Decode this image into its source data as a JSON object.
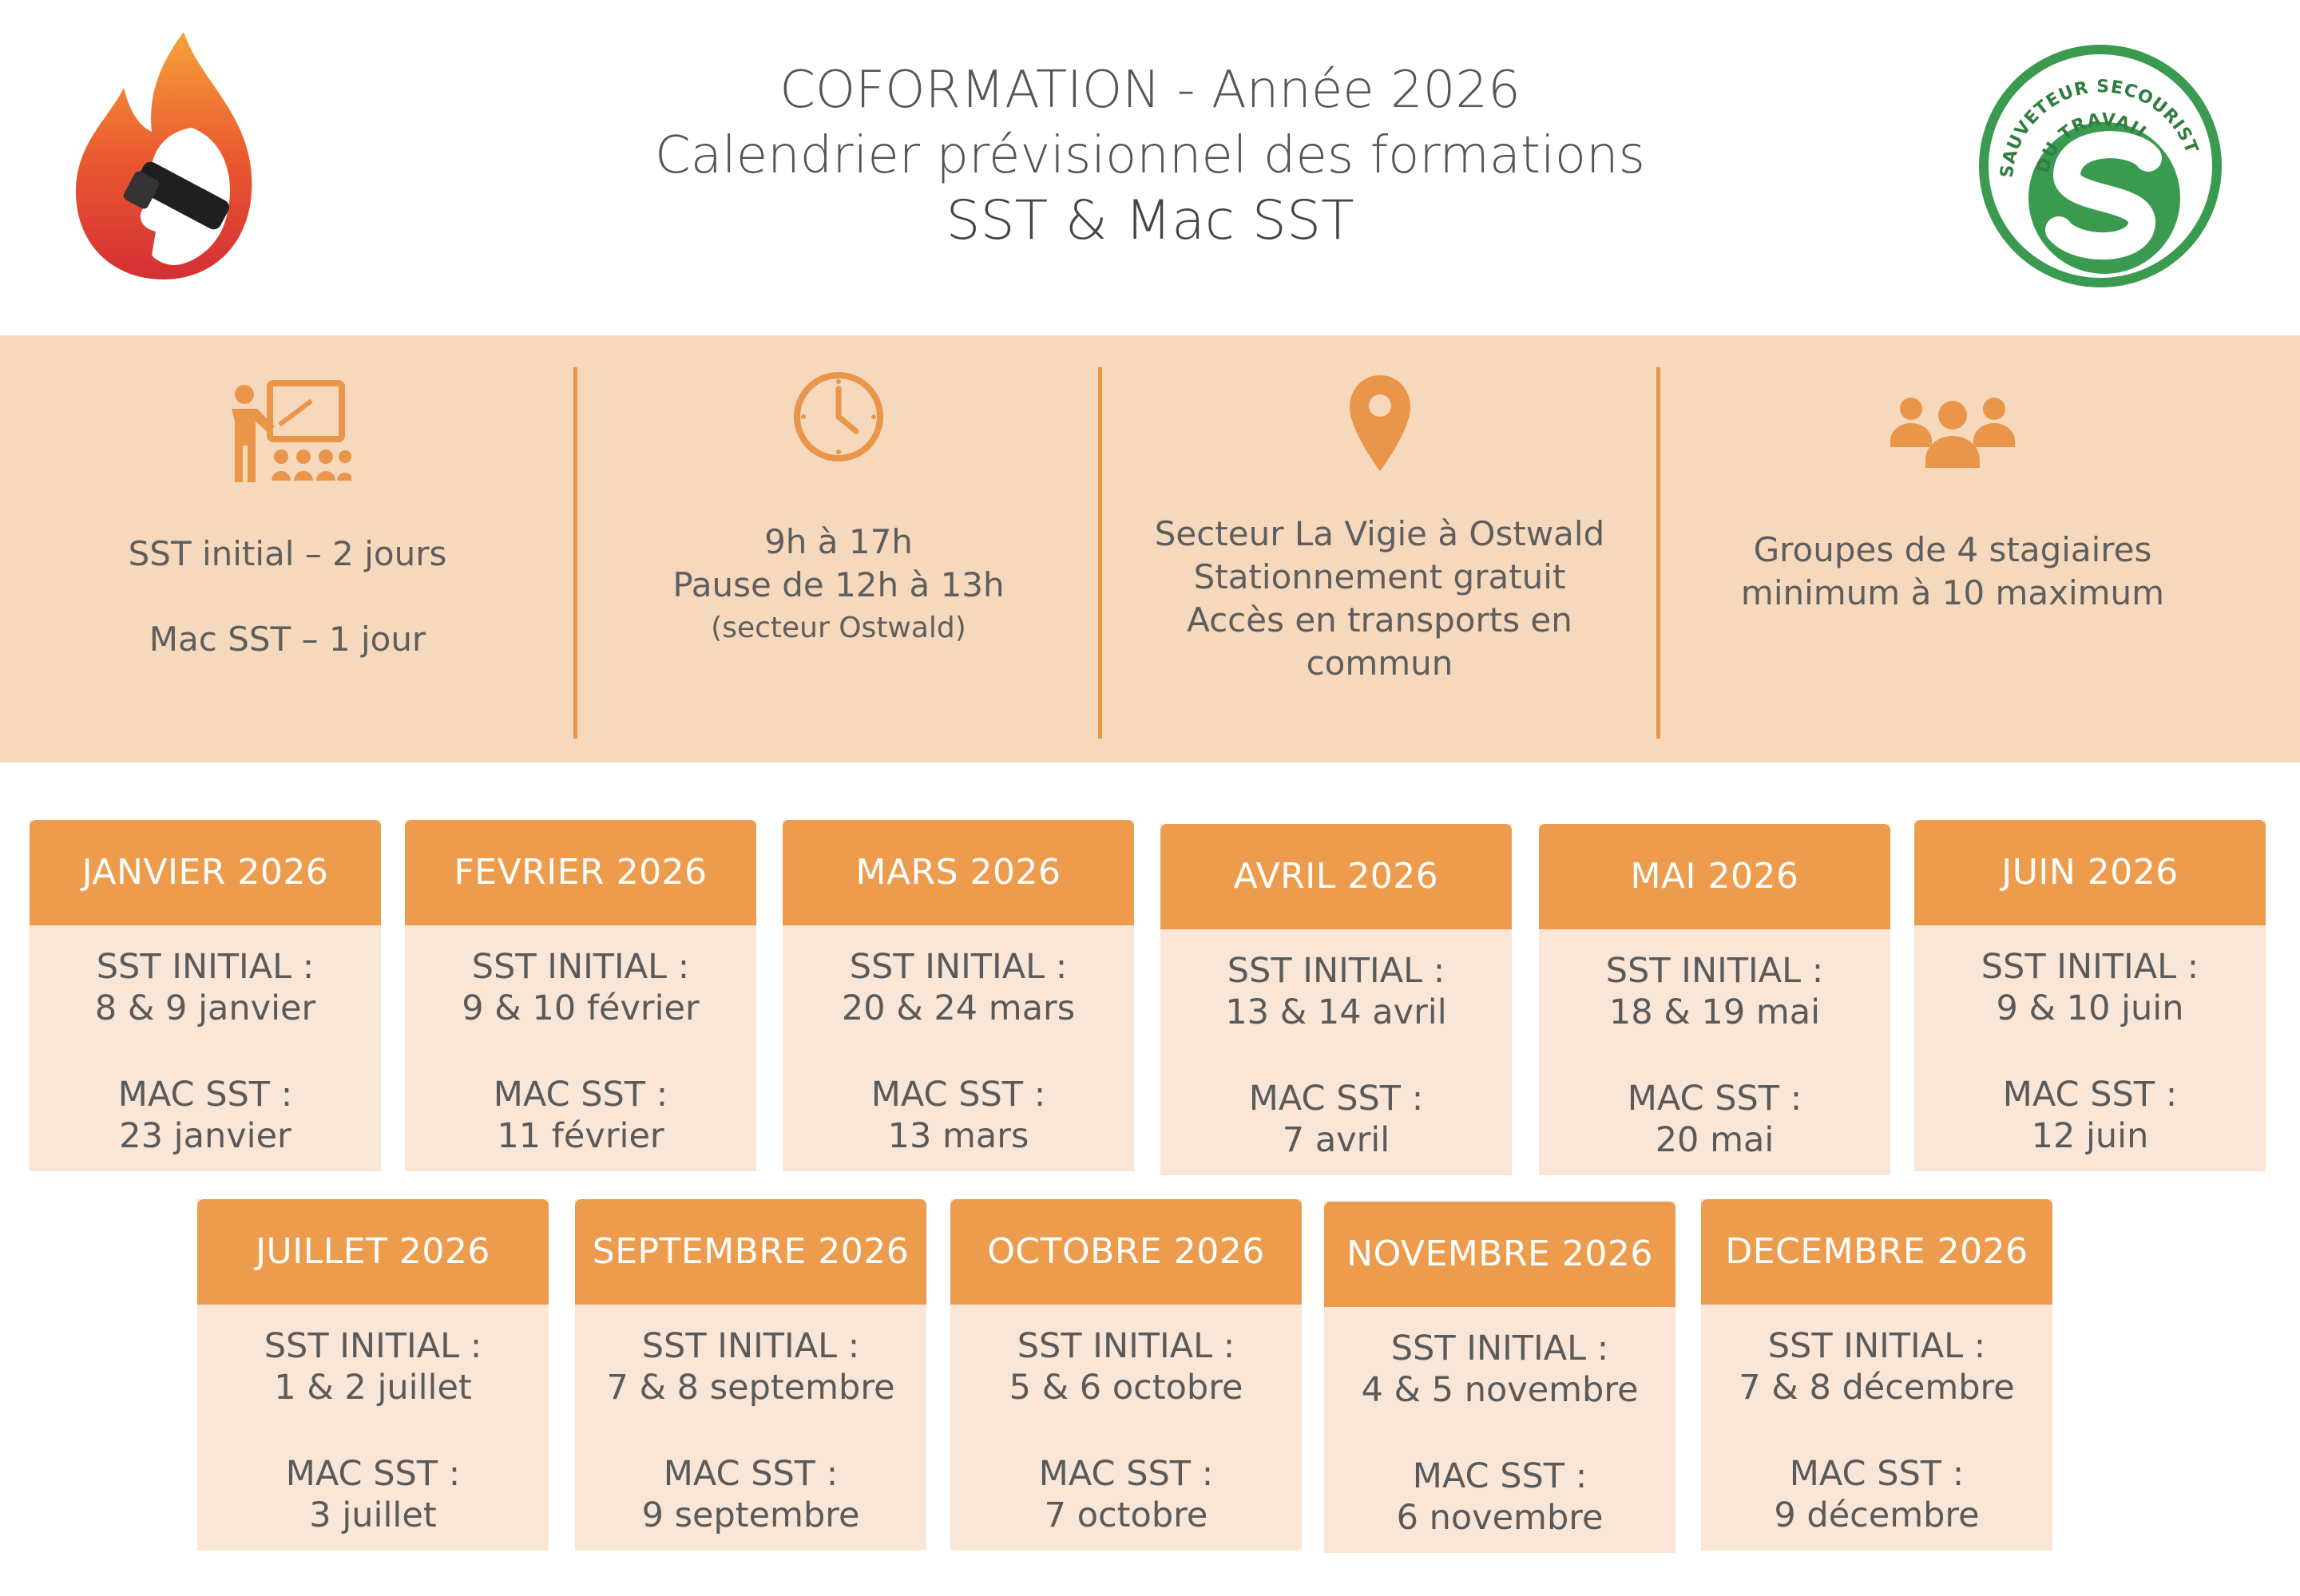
{
  "header": {
    "title_line1": "COFORMATION - Année 2026",
    "title_line2": "Calendrier prévisionnel des formations",
    "title_line3": "SST & Mac SST",
    "right_logo_text": "SAUVETEUR SECOURISTE DU TRAVAIL"
  },
  "colors": {
    "accent": "#ec9c4c",
    "band": "#f6d8bc",
    "card_body": "#f9e6d7",
    "sst_green": "#3a9a4f",
    "flame_red": "#d9363b"
  },
  "info": {
    "col1": {
      "icon": "teacher-board-icon",
      "line1": "SST initial – 2 jours",
      "line2": "Mac SST – 1 jour"
    },
    "col2": {
      "icon": "clock-icon",
      "line1": "9h à 17h",
      "line2": "Pause de 12h à 13h",
      "line3": "(secteur Ostwald)"
    },
    "col3": {
      "icon": "map-pin-icon",
      "line1": "Secteur La Vigie à Ostwald",
      "line2": "Stationnement gratuit",
      "line3": "Accès en transports en",
      "line4": "commun"
    },
    "col4": {
      "icon": "group-icon",
      "line1": "Groupes de 4 stagiaires",
      "line2": "minimum à 10 maximum"
    }
  },
  "months": [
    {
      "title": "JANVIER 2026",
      "sst_label": "SST INITIAL :",
      "sst_dates": "8 & 9 janvier",
      "mac_label": "MAC SST :",
      "mac_date": "23 janvier"
    },
    {
      "title": "FEVRIER 2026",
      "sst_label": "SST INITIAL :",
      "sst_dates": "9 & 10 février",
      "mac_label": "MAC SST :",
      "mac_date": "11 février"
    },
    {
      "title": "MARS 2026",
      "sst_label": "SST INITIAL :",
      "sst_dates": "20 & 24 mars",
      "mac_label": "MAC SST :",
      "mac_date": "13 mars"
    },
    {
      "title": "AVRIL 2026",
      "sst_label": "SST INITIAL :",
      "sst_dates": "13 & 14 avril",
      "mac_label": "MAC SST :",
      "mac_date": "7 avril"
    },
    {
      "title": "MAI 2026",
      "sst_label": "SST INITIAL :",
      "sst_dates": "18 & 19 mai",
      "mac_label": "MAC SST :",
      "mac_date": "20 mai"
    },
    {
      "title": "JUIN 2026",
      "sst_label": "SST INITIAL :",
      "sst_dates": "9 & 10 juin",
      "mac_label": "MAC SST :",
      "mac_date": "12 juin"
    },
    {
      "title": "JUILLET 2026",
      "sst_label": "SST INITIAL :",
      "sst_dates": "1 & 2 juillet",
      "mac_label": "MAC SST :",
      "mac_date": "3 juillet"
    },
    {
      "title": "SEPTEMBRE 2026",
      "sst_label": "SST INITIAL :",
      "sst_dates": "7 & 8 septembre",
      "mac_label": "MAC SST :",
      "mac_date": "9 septembre"
    },
    {
      "title": "OCTOBRE 2026",
      "sst_label": "SST INITIAL :",
      "sst_dates": "5 & 6 octobre",
      "mac_label": "MAC SST :",
      "mac_date": "7 octobre"
    },
    {
      "title": "NOVEMBRE 2026",
      "sst_label": "SST INITIAL :",
      "sst_dates": "4 & 5 novembre",
      "mac_label": "MAC SST :",
      "mac_date": "6 novembre"
    },
    {
      "title": "DECEMBRE 2026",
      "sst_label": "SST INITIAL :",
      "sst_dates": "7 & 8 décembre",
      "mac_label": "MAC SST :",
      "mac_date": "9 décembre"
    }
  ]
}
